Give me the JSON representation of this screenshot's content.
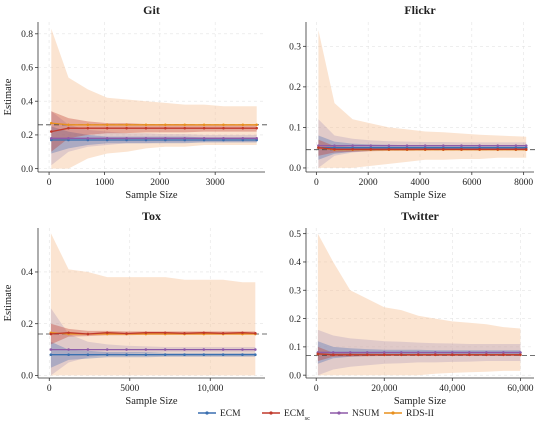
{
  "chart_data": [
    {
      "type": "line",
      "title": "Git",
      "xlabel": "Sample Size",
      "ylabel": "Estimate",
      "xlim": [
        -200,
        3900
      ],
      "ylim": [
        -0.02,
        0.87
      ],
      "xticks": [
        0,
        1000,
        2000,
        3000
      ],
      "xtick_labels": [
        "0",
        "1000",
        "2000",
        "3000"
      ],
      "yticks": [
        0.0,
        0.2,
        0.4,
        0.6,
        0.8
      ],
      "ytick_labels": [
        "0.0",
        "0.2",
        "0.4",
        "0.6",
        "0.8"
      ],
      "reference_line": 0.26,
      "x": [
        40,
        350,
        700,
        1050,
        1400,
        1750,
        2100,
        2450,
        2800,
        3150,
        3500,
        3750
      ],
      "series": [
        {
          "name": "ECM",
          "color": "#3a6fb0",
          "band_color": "#4a6fb5",
          "values": [
            0.17,
            0.17,
            0.17,
            0.17,
            0.17,
            0.17,
            0.17,
            0.17,
            0.17,
            0.17,
            0.17,
            0.17
          ],
          "lower": [
            0.09,
            0.12,
            0.14,
            0.15,
            0.15,
            0.15,
            0.15,
            0.15,
            0.155,
            0.155,
            0.155,
            0.155
          ],
          "upper": [
            0.25,
            0.22,
            0.2,
            0.19,
            0.19,
            0.19,
            0.19,
            0.19,
            0.185,
            0.185,
            0.185,
            0.185
          ]
        },
        {
          "name": "ECM_sc",
          "color": "#c0392b",
          "band_color": "#c0392b",
          "values": [
            0.22,
            0.24,
            0.24,
            0.24,
            0.24,
            0.24,
            0.24,
            0.24,
            0.24,
            0.24,
            0.24,
            0.24
          ],
          "lower": [
            0.1,
            0.18,
            0.2,
            0.21,
            0.21,
            0.215,
            0.215,
            0.215,
            0.22,
            0.22,
            0.22,
            0.22
          ],
          "upper": [
            0.34,
            0.3,
            0.28,
            0.27,
            0.27,
            0.265,
            0.265,
            0.265,
            0.26,
            0.26,
            0.26,
            0.26
          ]
        },
        {
          "name": "NSUM",
          "color": "#8e5aa8",
          "band_color": "#8e7ab5",
          "values": [
            0.18,
            0.18,
            0.18,
            0.18,
            0.18,
            0.18,
            0.18,
            0.18,
            0.18,
            0.18,
            0.18,
            0.18
          ],
          "lower": [
            0.02,
            0.1,
            0.13,
            0.14,
            0.15,
            0.15,
            0.155,
            0.155,
            0.16,
            0.16,
            0.16,
            0.16
          ],
          "upper": [
            0.34,
            0.26,
            0.23,
            0.22,
            0.21,
            0.21,
            0.205,
            0.205,
            0.2,
            0.2,
            0.2,
            0.2
          ]
        },
        {
          "name": "RDS-II",
          "color": "#e8901e",
          "band_color": "#f6c49a",
          "values": [
            0.27,
            0.26,
            0.26,
            0.26,
            0.26,
            0.26,
            0.26,
            0.26,
            0.26,
            0.26,
            0.26,
            0.26
          ],
          "lower": [
            0.0,
            0.0,
            0.06,
            0.09,
            0.1,
            0.12,
            0.13,
            0.13,
            0.14,
            0.14,
            0.14,
            0.14
          ],
          "upper": [
            0.83,
            0.54,
            0.47,
            0.42,
            0.41,
            0.4,
            0.39,
            0.38,
            0.38,
            0.37,
            0.37,
            0.37
          ]
        }
      ]
    },
    {
      "type": "line",
      "title": "Flickr",
      "xlabel": "Sample Size",
      "ylabel": "",
      "xlim": [
        -400,
        8400
      ],
      "ylim": [
        -0.01,
        0.36
      ],
      "xticks": [
        0,
        2000,
        4000,
        6000,
        8000
      ],
      "xtick_labels": [
        "0",
        "2000",
        "4000",
        "6000",
        "8000"
      ],
      "yticks": [
        0.0,
        0.1,
        0.2,
        0.3
      ],
      "ytick_labels": [
        "0.0",
        "0.1",
        "0.2",
        "0.3"
      ],
      "reference_line": 0.045,
      "x": [
        80,
        700,
        1400,
        2100,
        2800,
        3500,
        4200,
        4900,
        5600,
        6300,
        7000,
        7700,
        8100
      ],
      "series": [
        {
          "name": "ECM",
          "color": "#3a6fb0",
          "band_color": "#4a6fb5",
          "values": [
            0.05,
            0.05,
            0.05,
            0.05,
            0.05,
            0.05,
            0.05,
            0.05,
            0.05,
            0.05,
            0.05,
            0.05,
            0.05
          ],
          "lower": [
            0.02,
            0.035,
            0.04,
            0.042,
            0.043,
            0.044,
            0.044,
            0.045,
            0.045,
            0.045,
            0.045,
            0.045,
            0.045
          ],
          "upper": [
            0.08,
            0.065,
            0.06,
            0.058,
            0.057,
            0.056,
            0.056,
            0.055,
            0.055,
            0.055,
            0.055,
            0.055,
            0.055
          ]
        },
        {
          "name": "ECM_sc",
          "color": "#c0392b",
          "band_color": "#c0392b",
          "values": [
            0.05,
            0.046,
            0.046,
            0.046,
            0.046,
            0.046,
            0.046,
            0.046,
            0.046,
            0.046,
            0.046,
            0.046,
            0.046
          ],
          "lower": [
            0.03,
            0.038,
            0.04,
            0.041,
            0.042,
            0.042,
            0.043,
            0.043,
            0.043,
            0.043,
            0.043,
            0.043,
            0.043
          ],
          "upper": [
            0.07,
            0.054,
            0.052,
            0.051,
            0.05,
            0.05,
            0.049,
            0.049,
            0.049,
            0.049,
            0.049,
            0.049,
            0.049
          ]
        },
        {
          "name": "NSUM",
          "color": "#8e5aa8",
          "band_color": "#8e7ab5",
          "values": [
            0.055,
            0.055,
            0.055,
            0.055,
            0.055,
            0.055,
            0.055,
            0.055,
            0.055,
            0.055,
            0.055,
            0.055,
            0.055
          ],
          "lower": [
            0.0,
            0.03,
            0.038,
            0.042,
            0.044,
            0.045,
            0.046,
            0.046,
            0.047,
            0.047,
            0.047,
            0.047,
            0.047
          ],
          "upper": [
            0.12,
            0.08,
            0.072,
            0.068,
            0.066,
            0.065,
            0.064,
            0.064,
            0.063,
            0.063,
            0.063,
            0.063,
            0.063
          ]
        },
        {
          "name": "RDS-II",
          "color": "#e8901e",
          "band_color": "#f6c49a",
          "values": [
            0.05,
            0.045,
            0.045,
            0.045,
            0.045,
            0.045,
            0.045,
            0.045,
            0.045,
            0.045,
            0.045,
            0.045,
            0.045
          ],
          "lower": [
            0.0,
            0.0,
            0.0,
            0.005,
            0.01,
            0.015,
            0.02,
            0.02,
            0.022,
            0.022,
            0.025,
            0.025,
            0.025
          ],
          "upper": [
            0.34,
            0.16,
            0.12,
            0.11,
            0.1,
            0.095,
            0.09,
            0.088,
            0.085,
            0.082,
            0.08,
            0.078,
            0.077
          ]
        }
      ]
    },
    {
      "type": "line",
      "title": "Tox",
      "xlabel": "Sample Size",
      "ylabel": "Estimate",
      "xlim": [
        -700,
        13400
      ],
      "ylim": [
        -0.01,
        0.57
      ],
      "xticks": [
        0,
        5000,
        10000
      ],
      "xtick_labels": [
        "0",
        "5000",
        "10,000"
      ],
      "yticks": [
        0.0,
        0.2,
        0.4
      ],
      "ytick_labels": [
        "0.0",
        "0.2",
        "0.4"
      ],
      "reference_line": 0.16,
      "x": [
        100,
        1200,
        2400,
        3600,
        4800,
        6000,
        7200,
        8400,
        9600,
        10800,
        12000,
        12800
      ],
      "series": [
        {
          "name": "ECM",
          "color": "#3a6fb0",
          "band_color": "#4a6fb5",
          "values": [
            0.08,
            0.08,
            0.08,
            0.08,
            0.08,
            0.08,
            0.08,
            0.08,
            0.08,
            0.08,
            0.08,
            0.08
          ],
          "lower": [
            0.03,
            0.06,
            0.065,
            0.07,
            0.07,
            0.07,
            0.072,
            0.072,
            0.072,
            0.072,
            0.072,
            0.072
          ],
          "upper": [
            0.13,
            0.1,
            0.095,
            0.09,
            0.09,
            0.09,
            0.088,
            0.088,
            0.088,
            0.088,
            0.088,
            0.088
          ]
        },
        {
          "name": "ECM_sc",
          "color": "#c0392b",
          "band_color": "#c0392b",
          "values": [
            0.16,
            0.165,
            0.16,
            0.165,
            0.162,
            0.165,
            0.165,
            0.163,
            0.165,
            0.163,
            0.165,
            0.163
          ],
          "lower": [
            0.12,
            0.15,
            0.152,
            0.155,
            0.155,
            0.157,
            0.157,
            0.157,
            0.158,
            0.158,
            0.158,
            0.158
          ],
          "upper": [
            0.2,
            0.18,
            0.172,
            0.172,
            0.17,
            0.17,
            0.17,
            0.17,
            0.17,
            0.17,
            0.17,
            0.17
          ]
        },
        {
          "name": "NSUM",
          "color": "#8e5aa8",
          "band_color": "#8e7ab5",
          "values": [
            0.1,
            0.1,
            0.1,
            0.1,
            0.1,
            0.1,
            0.1,
            0.1,
            0.1,
            0.1,
            0.1,
            0.1
          ],
          "lower": [
            0.0,
            0.05,
            0.07,
            0.08,
            0.085,
            0.088,
            0.09,
            0.09,
            0.09,
            0.09,
            0.09,
            0.09
          ],
          "upper": [
            0.26,
            0.16,
            0.13,
            0.12,
            0.115,
            0.112,
            0.11,
            0.11,
            0.11,
            0.11,
            0.11,
            0.11
          ]
        },
        {
          "name": "RDS-II",
          "color": "#e8901e",
          "band_color": "#f6c49a",
          "values": [
            0.165,
            0.16,
            0.16,
            0.16,
            0.16,
            0.16,
            0.16,
            0.16,
            0.16,
            0.16,
            0.16,
            0.16
          ],
          "lower": [
            0.0,
            0.0,
            0.0,
            0.0,
            0.0,
            0.0,
            0.0,
            0.0,
            0.0,
            0.0,
            0.0,
            0.0
          ],
          "upper": [
            0.55,
            0.41,
            0.4,
            0.38,
            0.38,
            0.38,
            0.38,
            0.37,
            0.37,
            0.37,
            0.36,
            0.36
          ]
        }
      ]
    },
    {
      "type": "line",
      "title": "Twitter",
      "xlabel": "Sample Size",
      "ylabel": "",
      "xlim": [
        -3000,
        64000
      ],
      "ylim": [
        -0.01,
        0.52
      ],
      "xticks": [
        0,
        20000,
        40000,
        60000
      ],
      "xtick_labels": [
        "0",
        "20,000",
        "40,000",
        "60,000"
      ],
      "yticks": [
        0.0,
        0.1,
        0.2,
        0.3,
        0.4,
        0.5
      ],
      "ytick_labels": [
        "0.0",
        "0.1",
        "0.2",
        "0.3",
        "0.4",
        "0.5"
      ],
      "reference_line": 0.07,
      "x": [
        500,
        5000,
        10000,
        15000,
        20000,
        25000,
        30000,
        35000,
        40000,
        45000,
        50000,
        55000,
        60000
      ],
      "series": [
        {
          "name": "ECM",
          "color": "#3a6fb0",
          "band_color": "#4a6fb5",
          "values": [
            0.08,
            0.08,
            0.08,
            0.08,
            0.08,
            0.08,
            0.08,
            0.08,
            0.08,
            0.08,
            0.08,
            0.08,
            0.08
          ],
          "lower": [
            0.04,
            0.06,
            0.065,
            0.068,
            0.07,
            0.07,
            0.07,
            0.072,
            0.072,
            0.072,
            0.072,
            0.072,
            0.072
          ],
          "upper": [
            0.12,
            0.1,
            0.095,
            0.092,
            0.09,
            0.09,
            0.09,
            0.088,
            0.088,
            0.088,
            0.088,
            0.088,
            0.088
          ]
        },
        {
          "name": "ECM_sc",
          "color": "#c0392b",
          "band_color": "#c0392b",
          "values": [
            0.075,
            0.072,
            0.072,
            0.072,
            0.072,
            0.072,
            0.072,
            0.072,
            0.072,
            0.072,
            0.072,
            0.072,
            0.072
          ],
          "lower": [
            0.05,
            0.065,
            0.066,
            0.067,
            0.068,
            0.068,
            0.068,
            0.068,
            0.068,
            0.068,
            0.068,
            0.068,
            0.068
          ],
          "upper": [
            0.1,
            0.079,
            0.078,
            0.077,
            0.076,
            0.076,
            0.076,
            0.076,
            0.076,
            0.076,
            0.076,
            0.076,
            0.076
          ]
        },
        {
          "name": "NSUM",
          "color": "#8e5aa8",
          "band_color": "#8e7ab5",
          "values": [
            0.08,
            0.08,
            0.08,
            0.08,
            0.08,
            0.08,
            0.08,
            0.08,
            0.08,
            0.08,
            0.08,
            0.08,
            0.08
          ],
          "lower": [
            0.0,
            0.02,
            0.03,
            0.035,
            0.04,
            0.042,
            0.045,
            0.045,
            0.047,
            0.048,
            0.05,
            0.05,
            0.05
          ],
          "upper": [
            0.16,
            0.14,
            0.13,
            0.125,
            0.12,
            0.118,
            0.115,
            0.113,
            0.112,
            0.11,
            0.11,
            0.11,
            0.11
          ]
        },
        {
          "name": "RDS-II",
          "color": "#e8901e",
          "band_color": "#f6c49a",
          "values": [
            0.075,
            0.072,
            0.072,
            0.072,
            0.072,
            0.072,
            0.072,
            0.072,
            0.072,
            0.072,
            0.072,
            0.072,
            0.072
          ],
          "lower": [
            0.0,
            0.0,
            0.0,
            0.0,
            0.0,
            0.0,
            0.0,
            0.005,
            0.008,
            0.01,
            0.012,
            0.015,
            0.015
          ],
          "upper": [
            0.5,
            0.4,
            0.3,
            0.27,
            0.24,
            0.23,
            0.21,
            0.2,
            0.19,
            0.185,
            0.18,
            0.17,
            0.165
          ]
        }
      ]
    }
  ],
  "legend": {
    "placement": "bottom",
    "items": [
      {
        "label": "ECM",
        "sub": "",
        "color": "#3a6fb0"
      },
      {
        "label": "ECM",
        "sub": "sc",
        "color": "#c0392b"
      },
      {
        "label": "NSUM",
        "sub": "",
        "color": "#8e5aa8"
      },
      {
        "label": "RDS-II",
        "sub": "",
        "color": "#e8901e"
      }
    ]
  }
}
